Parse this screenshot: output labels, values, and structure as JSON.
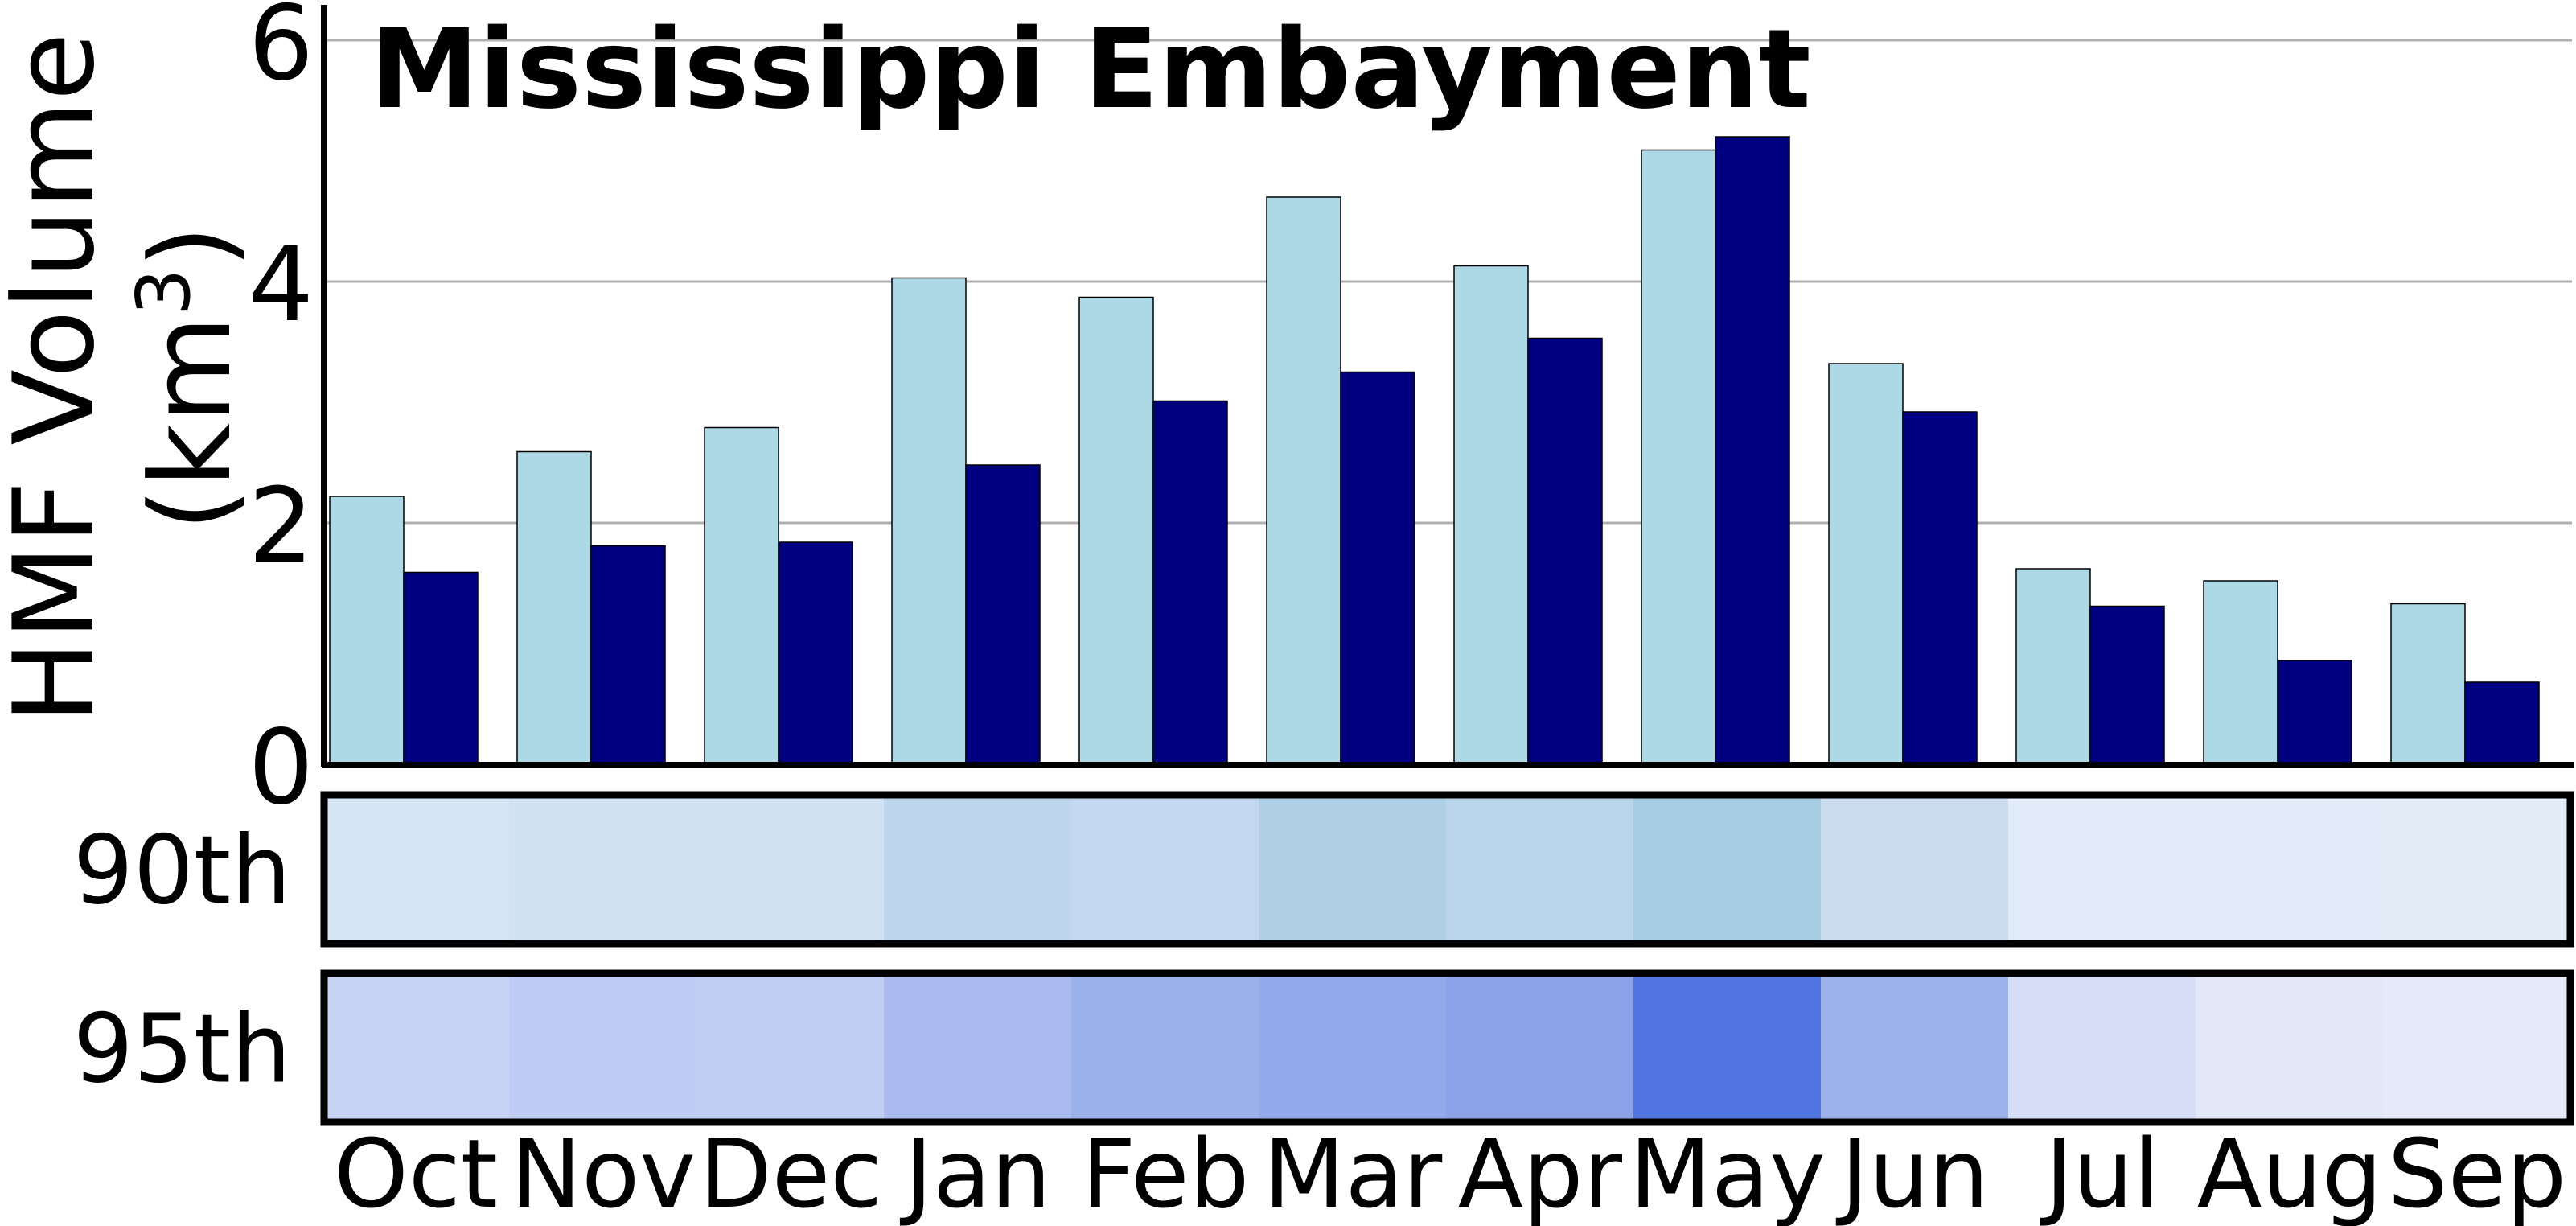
{
  "chart_data": {
    "type": "bar",
    "title": "Mississippi Embayment",
    "ylabel_line1": "HMF Volume",
    "ylabel_line2": "(km",
    "ylabel_sup": "3",
    "ylabel_close": ")",
    "ylim": [
      0,
      6.3
    ],
    "yticks": [
      0,
      2,
      4,
      6
    ],
    "grid": true,
    "categories": [
      "Oct",
      "Nov",
      "Dec",
      "Jan",
      "Feb",
      "Mar",
      "Apr",
      "May",
      "Jun",
      "Jul",
      "Aug",
      "Sep"
    ],
    "series": [
      {
        "color": "#add8e6",
        "values": [
          2.22,
          2.59,
          2.79,
          4.03,
          3.87,
          4.7,
          4.13,
          5.09,
          3.32,
          1.62,
          1.52,
          1.33
        ]
      },
      {
        "color": "#000080",
        "values": [
          1.59,
          1.81,
          1.84,
          2.48,
          3.01,
          3.25,
          3.53,
          5.2,
          2.92,
          1.31,
          0.86,
          0.68
        ]
      }
    ],
    "heatmap_rows": [
      {
        "label": "90th",
        "colors": [
          "#d6e5f4",
          "#d1e2f2",
          "#d1e2f2",
          "#bed6eb",
          "#c3d8ee",
          "#afcfe4",
          "#bad5ea",
          "#a6cde1",
          "#cadcee",
          "#e0ebf7",
          "#e0ebf7",
          "#e2ecf7"
        ]
      },
      {
        "label": "95th",
        "colors": [
          "#c7d3f5",
          "#bfcdf4",
          "#c1cef4",
          "#a9bbf0",
          "#9bb1ec",
          "#94abeb",
          "#8ba4e9",
          "#5175e2",
          "#9db2ed",
          "#d6dff7",
          "#e3e8f8",
          "#e6eaf8"
        ]
      }
    ]
  }
}
